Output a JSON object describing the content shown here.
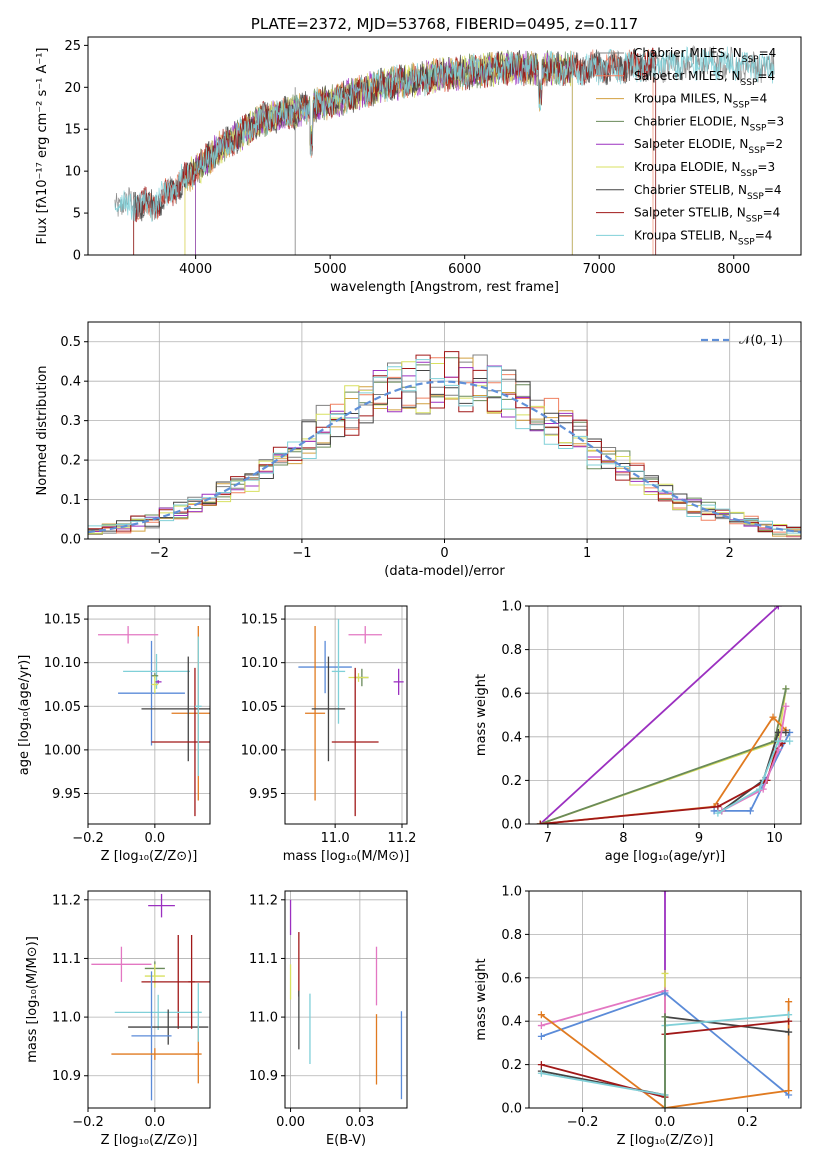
{
  "title": "PLATE=2372, MJD=53768, FIBERID=0495, z=0.117",
  "colors": {
    "chabrier_miles": "#808080",
    "salpeter_miles": "#f08060",
    "kroupa_miles": "#d2a040",
    "chabrier_elodie": "#6a8a5a",
    "salpeter_elodie": "#9b30c0",
    "kroupa_elodie": "#d8e060",
    "chabrier_stelib": "#444444",
    "salpeter_stelib": "#a01818",
    "kroupa_stelib": "#80d0d8",
    "gauss": "#6090d8",
    "grid": "#b0b0b0"
  },
  "chart_data": [
    {
      "id": "spectrum",
      "type": "line",
      "title": "PLATE=2372, MJD=53768, FIBERID=0495, z=0.117",
      "xlabel": "wavelength [Angstrom, rest frame]",
      "ylabel": "Flux [fλ10⁻¹⁷ erg cm⁻² s⁻¹ A⁻¹]",
      "xlim": [
        3200,
        8500
      ],
      "ylim": [
        0,
        26
      ],
      "xticks": [
        4000,
        5000,
        6000,
        7000,
        8000
      ],
      "yticks": [
        0,
        5,
        10,
        15,
        20,
        25
      ],
      "legend_position": "right",
      "continuum": [
        [
          3400,
          6.2
        ],
        [
          3700,
          6.0
        ],
        [
          3950,
          9.5
        ],
        [
          4200,
          13.0
        ],
        [
          4500,
          16.2
        ],
        [
          4900,
          17.8
        ],
        [
          5400,
          20.3
        ],
        [
          5800,
          21.4
        ],
        [
          6300,
          22.3
        ],
        [
          6800,
          22.2
        ],
        [
          7300,
          22.6
        ],
        [
          7800,
          22.9
        ],
        [
          8300,
          22.4
        ]
      ],
      "series": [
        {
          "name": "Chabrier MILES, N_SSP=4",
          "color": "#808080",
          "wmin": 3400,
          "wmax": 8300,
          "drops": [
            4740
          ]
        },
        {
          "name": "Salpeter MILES, N_SSP=4",
          "color": "#f08060",
          "wmin": 3540,
          "wmax": 7400,
          "drops": []
        },
        {
          "name": "Kroupa MILES, N_SSP=4",
          "color": "#d2a040",
          "wmin": 3920,
          "wmax": 6800,
          "drops": []
        },
        {
          "name": "Chabrier ELODIE, N_SSP=3",
          "color": "#6a8a5a",
          "wmin": 4000,
          "wmax": 6800,
          "drops": []
        },
        {
          "name": "Salpeter ELODIE, N_SSP=2",
          "color": "#9b30c0",
          "wmin": 4000,
          "wmax": 6800,
          "drops": []
        },
        {
          "name": "Kroupa ELODIE, N_SSP=3",
          "color": "#d8e060",
          "wmin": 3920,
          "wmax": 6800,
          "drops": []
        },
        {
          "name": "Chabrier STELIB, N_SSP=4",
          "color": "#444444",
          "wmin": 3540,
          "wmax": 7420,
          "drops": []
        },
        {
          "name": "Salpeter STELIB, N_SSP=4",
          "color": "#a01818",
          "wmin": 3540,
          "wmax": 7420,
          "drops": []
        },
        {
          "name": "Kroupa STELIB, N_SSP=4",
          "color": "#80d0d8",
          "wmin": 3400,
          "wmax": 8300,
          "drops": []
        }
      ]
    },
    {
      "id": "residuals",
      "type": "line",
      "xlabel": "(data-model)/error",
      "ylabel": "Normed distribution",
      "xlim": [
        -2.5,
        2.5
      ],
      "ylim": [
        0,
        0.55
      ],
      "xticks": [
        -2,
        -1,
        0,
        1,
        2
      ],
      "yticks": [
        0.0,
        0.1,
        0.2,
        0.3,
        0.4,
        0.5
      ],
      "bin_width": 0.1,
      "series_colors": [
        "#808080",
        "#f08060",
        "#d2a040",
        "#6a8a5a",
        "#9b30c0",
        "#d8e060",
        "#444444",
        "#a01818",
        "#80d0d8"
      ],
      "gauss_label": "𝒩(0, 1)",
      "legend_position": "upper right"
    },
    {
      "id": "age_vs_Z",
      "type": "scatter",
      "xlabel": "Z [log₁₀(Z/Z⊙)]",
      "ylabel": "age  [log₁₀(age/yr)]",
      "xlim": [
        -0.2,
        0.165
      ],
      "ylim": [
        9.915,
        10.165
      ],
      "xticks": [
        -0.2,
        0.0
      ],
      "yticks": [
        9.95,
        10.0,
        10.05,
        10.1,
        10.15
      ],
      "points": [
        {
          "color": "#e377c2",
          "x": -0.08,
          "xerr": 0.09,
          "y": 10.132,
          "yerr": 0.01
        },
        {
          "color": "#5b8bd8",
          "x": -0.01,
          "xerr": 0.1,
          "y": 10.065,
          "yerr": 0.06
        },
        {
          "color": "#80d0d8",
          "x": 0.005,
          "xerr": 0.1,
          "y": 10.09,
          "yerr": 0.02
        },
        {
          "color": "#6a8a5a",
          "x": 0.0,
          "xerr": 0.01,
          "y": 10.085,
          "yerr": 0.003
        },
        {
          "color": "#9b30c0",
          "x": 0.01,
          "xerr": 0.01,
          "y": 10.078,
          "yerr": 0.002
        },
        {
          "color": "#d8e060",
          "x": 0.0,
          "xerr": 0.01,
          "y": 10.075,
          "yerr": 0.01
        },
        {
          "color": "#e07a20",
          "x": 0.13,
          "xerr": 0.08,
          "y": 10.042,
          "yerr": 0.1
        },
        {
          "color": "#444444",
          "x": 0.1,
          "xerr": 0.14,
          "y": 10.047,
          "yerr": 0.06
        },
        {
          "color": "#a01818",
          "x": 0.12,
          "xerr": 0.13,
          "y": 10.009,
          "yerr": 0.085
        },
        {
          "color": "#80d0d8",
          "x": 0.13,
          "xerr": 0.01,
          "y": 10.05,
          "yerr": 0.08
        }
      ]
    },
    {
      "id": "age_vs_mass",
      "type": "scatter",
      "xlabel": "mass [log₁₀(M/M⊙)]",
      "ylabel": "",
      "xlim": [
        10.85,
        11.215
      ],
      "ylim": [
        9.915,
        10.165
      ],
      "xticks": [
        11.0,
        11.2
      ],
      "yticks": [
        9.95,
        10.0,
        10.05,
        10.1,
        10.15
      ],
      "points": [
        {
          "color": "#e377c2",
          "x": 11.09,
          "xerr": 0.05,
          "y": 10.132,
          "yerr": 0.01
        },
        {
          "color": "#5b8bd8",
          "x": 10.97,
          "xerr": 0.08,
          "y": 10.095,
          "yerr": 0.03
        },
        {
          "color": "#80d0d8",
          "x": 11.01,
          "xerr": 0.02,
          "y": 10.09,
          "yerr": 0.06
        },
        {
          "color": "#6a8a5a",
          "x": 11.08,
          "xerr": 0.02,
          "y": 10.083,
          "yerr": 0.01
        },
        {
          "color": "#d8e060",
          "x": 11.07,
          "xerr": 0.03,
          "y": 10.083,
          "yerr": 0.005
        },
        {
          "color": "#9b30c0",
          "x": 11.19,
          "xerr": 0.015,
          "y": 10.078,
          "yerr": 0.015
        },
        {
          "color": "#e07a20",
          "x": 10.94,
          "xerr": 0.03,
          "y": 10.042,
          "yerr": 0.1
        },
        {
          "color": "#444444",
          "x": 10.98,
          "xerr": 0.05,
          "y": 10.047,
          "yerr": 0.06
        },
        {
          "color": "#a01818",
          "x": 11.06,
          "xerr": 0.07,
          "y": 10.009,
          "yerr": 0.085
        }
      ]
    },
    {
      "id": "weight_vs_age",
      "type": "line",
      "xlabel": "age  [log₁₀(age/yr)]",
      "ylabel": "mass weight",
      "xlim": [
        6.75,
        10.35
      ],
      "ylim": [
        0,
        1
      ],
      "xticks": [
        7,
        8,
        9,
        10
      ],
      "yticks": [
        0.0,
        0.2,
        0.4,
        0.6,
        0.8,
        1.0
      ],
      "series": [
        {
          "color": "#9b30c0",
          "x": [
            6.9,
            10.05
          ],
          "y": [
            0.0,
            1.0
          ]
        },
        {
          "color": "#d8e060",
          "x": [
            6.9,
            10.05,
            10.15
          ],
          "y": [
            0.0,
            0.38,
            0.62
          ]
        },
        {
          "color": "#6a8a5a",
          "x": [
            6.9,
            10.0,
            10.15
          ],
          "y": [
            0.0,
            0.38,
            0.62
          ]
        },
        {
          "color": "#e07a20",
          "x": [
            6.9,
            9.2,
            9.98,
            10.15
          ],
          "y": [
            0.0,
            0.08,
            0.49,
            0.43
          ]
        },
        {
          "color": "#5b8bd8",
          "x": [
            9.2,
            9.68,
            9.88,
            10.2
          ],
          "y": [
            0.06,
            0.06,
            0.2,
            0.42
          ]
        },
        {
          "color": "#444444",
          "x": [
            9.3,
            9.85,
            10.05,
            10.15
          ],
          "y": [
            0.06,
            0.2,
            0.42,
            0.42
          ]
        },
        {
          "color": "#a01818",
          "x": [
            6.9,
            9.25,
            9.9,
            10.02,
            10.1
          ],
          "y": [
            0.0,
            0.08,
            0.2,
            0.34,
            0.37
          ]
        },
        {
          "color": "#e377c2",
          "x": [
            9.3,
            9.85,
            10.05,
            10.15
          ],
          "y": [
            0.06,
            0.16,
            0.34,
            0.54
          ]
        },
        {
          "color": "#80d0d8",
          "x": [
            9.25,
            9.8,
            10.05,
            10.2
          ],
          "y": [
            0.05,
            0.16,
            0.38,
            0.38
          ]
        }
      ]
    },
    {
      "id": "mass_vs_Z",
      "type": "scatter",
      "xlabel": "Z [log₁₀(Z/Z⊙)]",
      "ylabel": "mass [log₁₀(M/M⊙)]",
      "xlim": [
        -0.2,
        0.165
      ],
      "ylim": [
        10.845,
        11.215
      ],
      "xticks": [
        -0.2,
        0.0
      ],
      "yticks": [
        10.9,
        11.0,
        11.1,
        11.2
      ],
      "points": [
        {
          "color": "#9b30c0",
          "x": 0.02,
          "xerr": 0.04,
          "y": 11.19,
          "yerr": 0.02
        },
        {
          "color": "#e377c2",
          "x": -0.1,
          "xerr": 0.09,
          "y": 11.09,
          "yerr": 0.03
        },
        {
          "color": "#6a8a5a",
          "x": 0.0,
          "xerr": 0.03,
          "y": 11.083,
          "yerr": 0.012
        },
        {
          "color": "#d8e060",
          "x": 0.0,
          "xerr": 0.03,
          "y": 11.07,
          "yerr": 0.02
        },
        {
          "color": "#a01818",
          "x": 0.07,
          "xerr": 0.11,
          "y": 11.06,
          "yerr": 0.08
        },
        {
          "color": "#80d0d8",
          "x": 0.01,
          "xerr": 0.13,
          "y": 11.008,
          "yerr": 0.03
        },
        {
          "color": "#444444",
          "x": 0.04,
          "xerr": 0.12,
          "y": 10.983,
          "yerr": 0.03
        },
        {
          "color": "#5b8bd8",
          "x": -0.01,
          "xerr": 0.06,
          "y": 10.968,
          "yerr": 0.11
        },
        {
          "color": "#e07a20",
          "x": 0.0,
          "xerr": 0.13,
          "y": 10.937,
          "yerr": 0.01
        },
        {
          "color": "#e07a20",
          "x": 0.13,
          "xerr": 0.01,
          "y": 10.937,
          "yerr": 0.05
        },
        {
          "color": "#80d0d8",
          "x": 0.13,
          "xerr": 0.01,
          "y": 11.008,
          "yerr": 0.05
        },
        {
          "color": "#a01818",
          "x": 0.11,
          "xerr": 0.01,
          "y": 11.06,
          "yerr": 0.08
        }
      ]
    },
    {
      "id": "mass_vs_ebv",
      "type": "scatter",
      "xlabel": "E(B-V)",
      "ylabel": "",
      "xlim": [
        -0.002,
        0.042
      ],
      "ylim": [
        10.845,
        11.215
      ],
      "xticks": [
        0.0,
        0.025
      ],
      "yticks": [
        10.9,
        11.0,
        11.1,
        11.2
      ],
      "points": [
        {
          "color": "#9b30c0",
          "x": 0.0,
          "y": 11.17,
          "yerr": 0.03
        },
        {
          "color": "#d8e060",
          "x": 0.0,
          "y": 11.06,
          "yerr": 0.03
        },
        {
          "color": "#a01818",
          "x": 0.003,
          "y": 11.09,
          "yerr": 0.055
        },
        {
          "color": "#444444",
          "x": 0.003,
          "y": 10.995,
          "yerr": 0.05
        },
        {
          "color": "#80d0d8",
          "x": 0.007,
          "y": 10.98,
          "yerr": 0.06
        },
        {
          "color": "#e377c2",
          "x": 0.031,
          "y": 11.07,
          "yerr": 0.05
        },
        {
          "color": "#e07a20",
          "x": 0.031,
          "y": 10.945,
          "yerr": 0.06
        },
        {
          "color": "#5b8bd8",
          "x": 0.04,
          "y": 10.935,
          "yerr": 0.075
        }
      ]
    },
    {
      "id": "weight_vs_Z",
      "type": "line",
      "xlabel": "Z [log₁₀(Z/Z⊙)]",
      "ylabel": "mass weight",
      "xlim": [
        -0.33,
        0.33
      ],
      "ylim": [
        0,
        1
      ],
      "xticks": [
        -0.2,
        0.0,
        0.2
      ],
      "yticks": [
        0.0,
        0.2,
        0.4,
        0.6,
        0.8,
        1.0
      ],
      "series": [
        {
          "color": "#9b30c0",
          "x": [
            0.0,
            0.0
          ],
          "y": [
            0.0,
            1.0
          ]
        },
        {
          "color": "#d8e060",
          "x": [
            0.0,
            0.0
          ],
          "y": [
            0.0,
            0.62
          ]
        },
        {
          "color": "#e377c2",
          "x": [
            -0.3,
            0.0,
            0.0
          ],
          "y": [
            0.38,
            0.54,
            0.0
          ]
        },
        {
          "color": "#5b8bd8",
          "x": [
            -0.3,
            0.0,
            0.3
          ],
          "y": [
            0.33,
            0.53,
            0.06
          ]
        },
        {
          "color": "#e07a20",
          "x": [
            -0.3,
            0.0,
            0.3,
            0.3
          ],
          "y": [
            0.43,
            0.0,
            0.08,
            0.49
          ]
        },
        {
          "color": "#444444",
          "x": [
            -0.3,
            0.0,
            0.0,
            0.3
          ],
          "y": [
            0.17,
            0.06,
            0.42,
            0.35
          ]
        },
        {
          "color": "#a01818",
          "x": [
            -0.3,
            0.0,
            0.0,
            0.3
          ],
          "y": [
            0.2,
            0.05,
            0.34,
            0.4
          ]
        },
        {
          "color": "#80d0d8",
          "x": [
            -0.3,
            0.0,
            0.0,
            0.3
          ],
          "y": [
            0.16,
            0.06,
            0.38,
            0.43
          ]
        },
        {
          "color": "#6a8a5a",
          "x": [
            0.0,
            0.0
          ],
          "y": [
            0.0,
            0.42
          ]
        }
      ]
    }
  ]
}
